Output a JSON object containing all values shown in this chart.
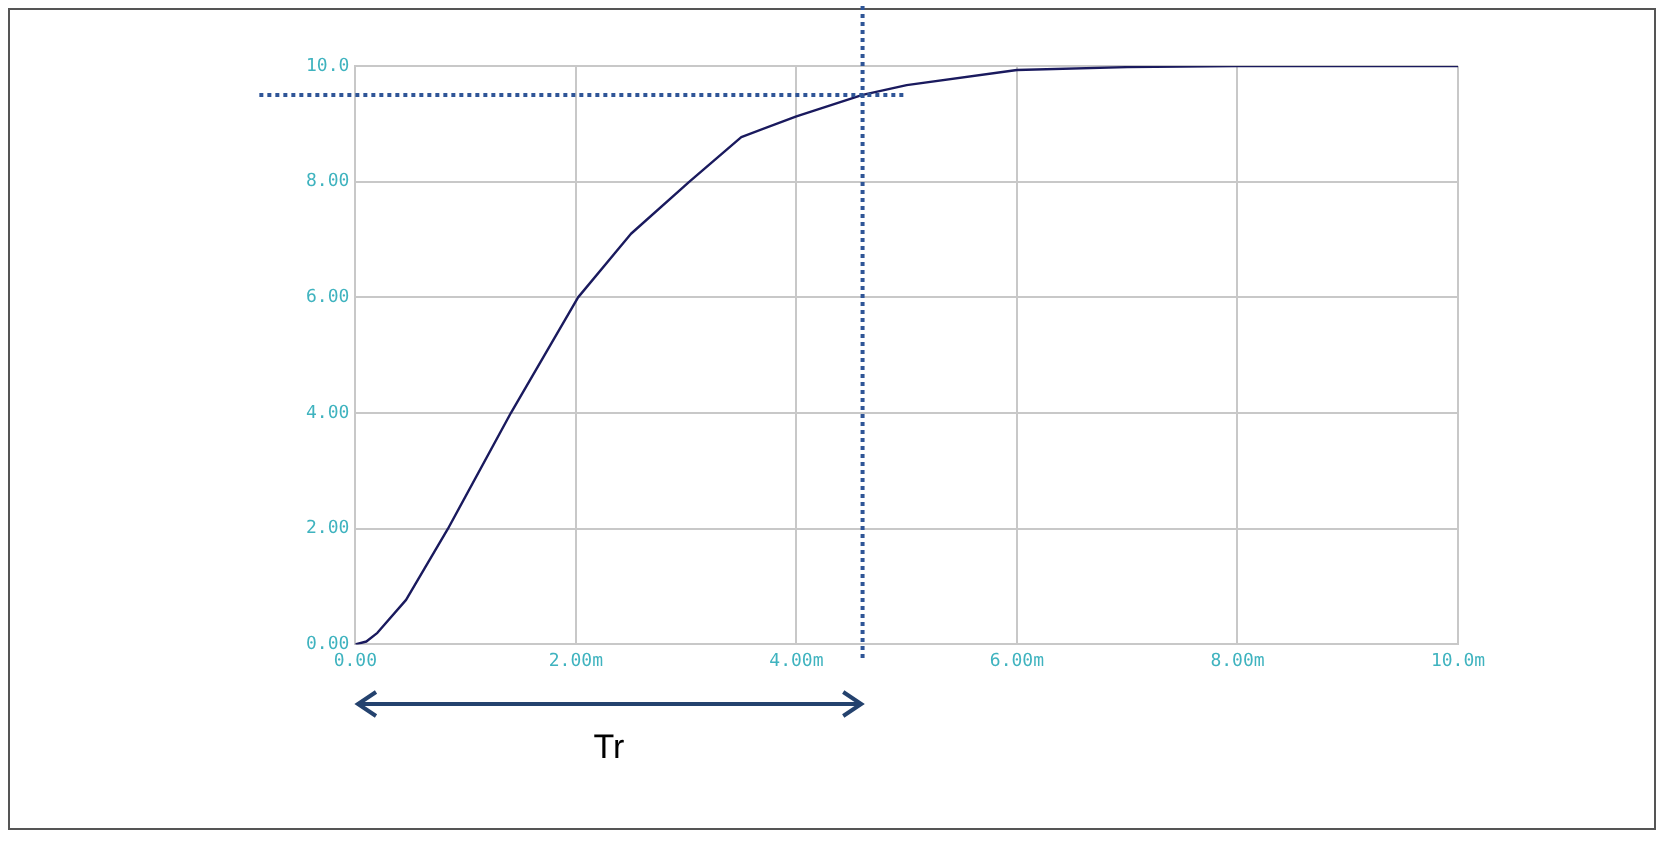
{
  "chart_data": {
    "type": "line",
    "x": [
      0,
      0.1,
      0.2,
      0.46,
      0.84,
      1.41,
      2.02,
      2.5,
      3.03,
      3.5,
      4.0,
      4.6,
      5.0,
      6.0,
      7.0,
      8.0,
      9.0,
      10.0
    ],
    "series": [
      {
        "color": "#1a1a5e",
        "values": [
          0,
          0.05,
          0.2,
          0.77,
          2.0,
          4.0,
          6.0,
          7.1,
          8.0,
          8.77,
          9.13,
          9.5,
          9.67,
          9.93,
          9.98,
          10.0,
          10.0,
          10.0
        ]
      }
    ],
    "xlim": [
      0,
      10
    ],
    "ylim": [
      0,
      10
    ],
    "xticks": [
      {
        "value": 0,
        "label": "0.00"
      },
      {
        "value": 2,
        "label": "2.00m"
      },
      {
        "value": 4,
        "label": "4.00m"
      },
      {
        "value": 6,
        "label": "6.00m"
      },
      {
        "value": 8,
        "label": "8.00m"
      },
      {
        "value": 10,
        "label": "10.0m"
      }
    ],
    "yticks": [
      {
        "value": 0,
        "label": "0.00"
      },
      {
        "value": 2,
        "label": "2.00"
      },
      {
        "value": 4,
        "label": "4.00"
      },
      {
        "value": 6,
        "label": "6.00"
      },
      {
        "value": 8,
        "label": "8.00"
      },
      {
        "value": 10,
        "label": "10.0"
      }
    ],
    "grid": true,
    "legend": false,
    "marker": "none",
    "line_style": "solid",
    "ref_lines": [
      {
        "axis": "y",
        "value": 9.5,
        "color": "#2f5597",
        "line_style": "dotted"
      },
      {
        "axis": "x",
        "value": 4.6,
        "color": "#2f5597",
        "line_style": "dotted"
      }
    ],
    "annotations": [
      "Tr"
    ]
  }
}
